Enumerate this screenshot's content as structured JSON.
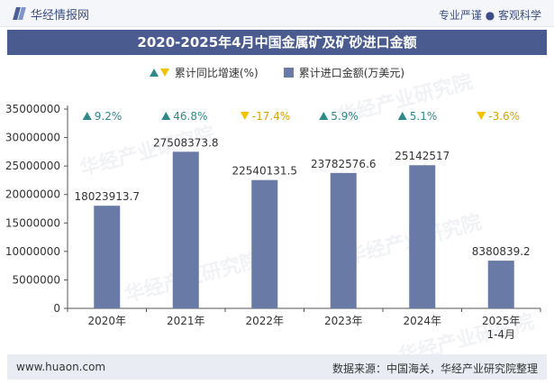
{
  "header": {
    "logo_text": "华经情报网",
    "tagline": "专业严谨 ● 客观科学"
  },
  "title": "2020-2025年4月中国金属矿及矿砂进口金额",
  "legend": {
    "growth_label": "累计同比增速(%)",
    "amount_label": "累计进口金额(万美元)"
  },
  "watermark": "华经产业研究院",
  "footer": {
    "website": "www.huaon.com",
    "source": "数据来源：中国海关，华经产业研究院整理"
  },
  "chart_data": {
    "type": "bar",
    "categories": [
      "2020年",
      "2021年",
      "2022年",
      "2023年",
      "2024年",
      "2025年\n1-4月"
    ],
    "series": [
      {
        "name": "累计进口金额(万美元)",
        "values": [
          18023913.7,
          27508373.8,
          22540131.5,
          23782576.6,
          25142517,
          8380839.2
        ],
        "labels": [
          "18023913.7",
          "27508373.8",
          "22540131.5",
          "23782576.6",
          "25142517",
          "8380839.2"
        ]
      },
      {
        "name": "累计同比增速(%)",
        "values": [
          9.2,
          46.8,
          -17.4,
          5.9,
          5.1,
          -3.6
        ],
        "labels": [
          "9.2%",
          "46.8%",
          "-17.4%",
          "5.9%",
          "5.1%",
          "-3.6%"
        ]
      }
    ],
    "yticks": [
      0,
      5000000,
      10000000,
      15000000,
      20000000,
      25000000,
      30000000,
      35000000
    ],
    "ylim": [
      0,
      35000000
    ],
    "colors": {
      "bar": "#6a7aa6",
      "up": "#2e8a8a",
      "down": "#f2c200",
      "axis": "#555555"
    }
  }
}
